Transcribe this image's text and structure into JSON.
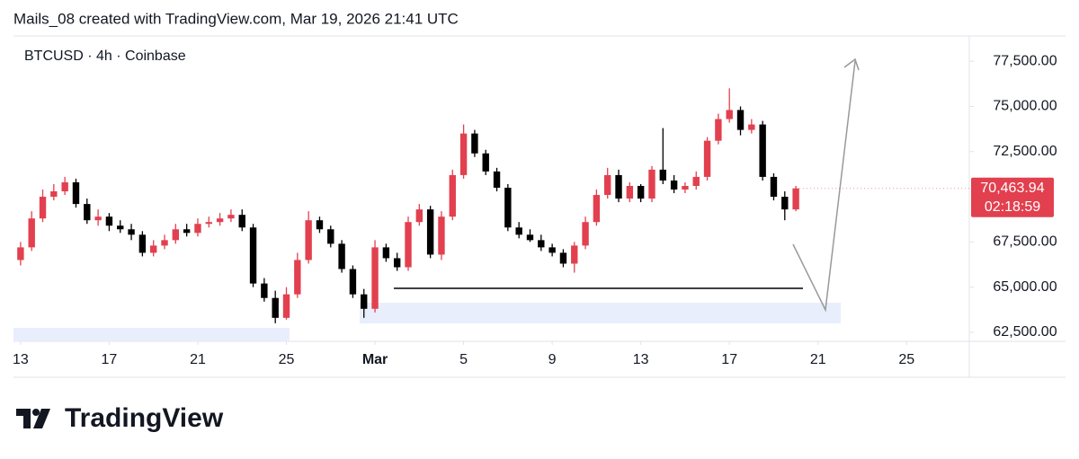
{
  "header": "Mails_08 created with TradingView.com, Mar 19, 2026 21:41 UTC",
  "logo": "TradingView",
  "chart_data": {
    "type": "candlestick",
    "title": "BTCUSD · 4h · Coinbase",
    "up_color": "#e2404f",
    "down_color": "#000000",
    "x": [
      0,
      0.5,
      1,
      1.5,
      2,
      2.5,
      3,
      3.5,
      4,
      4.5,
      5,
      5.5,
      6,
      6.5,
      7,
      7.5,
      8,
      8.5,
      9,
      9.5,
      10,
      10.5,
      11,
      11.5,
      12,
      12.5,
      13,
      13.5,
      14,
      14.5,
      15,
      15.5,
      16,
      16.5,
      17,
      17.5,
      18,
      18.5,
      19,
      19.5,
      20,
      20.5,
      21,
      21.5,
      22,
      22.5,
      23,
      23.5,
      24,
      24.5,
      25,
      25.5,
      26,
      26.5,
      27,
      27.5,
      28,
      28.5,
      29,
      29.5,
      30,
      30.5,
      31,
      31.5,
      32,
      32.5,
      33,
      33.5,
      34,
      34.5,
      35
    ],
    "open": [
      66500,
      67200,
      68800,
      70000,
      70300,
      70800,
      69600,
      68700,
      68900,
      68400,
      68200,
      67900,
      66900,
      67300,
      67600,
      68200,
      68000,
      68500,
      68600,
      68800,
      69000,
      68300,
      65200,
      64400,
      63300,
      64600,
      66500,
      68700,
      68200,
      67400,
      66000,
      64600,
      63800,
      67200,
      66600,
      66100,
      68600,
      69300,
      66800,
      68900,
      71200,
      73500,
      72400,
      71400,
      70500,
      68300,
      67900,
      67600,
      67200,
      66900,
      66300,
      67300,
      68600,
      70100,
      71200,
      69900,
      70600,
      69900,
      71500,
      70900,
      70400,
      70600,
      71100,
      73100,
      74300,
      74800,
      73700,
      74000,
      71100,
      70000,
      69300
    ],
    "high": [
      67500,
      69200,
      70400,
      70700,
      71100,
      71000,
      69900,
      69300,
      69100,
      68700,
      68500,
      68100,
      67600,
      67900,
      68500,
      68500,
      68800,
      68900,
      69100,
      69300,
      69300,
      68500,
      65500,
      64800,
      65000,
      66900,
      69200,
      68900,
      68400,
      67600,
      66200,
      64900,
      67600,
      67400,
      66900,
      68900,
      69600,
      69500,
      69200,
      71500,
      74000,
      73700,
      72600,
      71600,
      70700,
      68600,
      68200,
      67900,
      67400,
      67100,
      67500,
      68900,
      70400,
      71600,
      71500,
      70800,
      70700,
      71700,
      73800,
      71200,
      70800,
      71400,
      73300,
      74600,
      76000,
      75000,
      74300,
      74200,
      71300,
      70300,
      70600
    ],
    "low": [
      66200,
      67000,
      68600,
      69800,
      70100,
      69400,
      68500,
      68400,
      68100,
      68000,
      67600,
      66700,
      66700,
      67100,
      67400,
      67800,
      67800,
      68300,
      68400,
      68600,
      68100,
      65000,
      64200,
      63000,
      63200,
      64400,
      66300,
      68000,
      67200,
      65800,
      64400,
      63300,
      63600,
      66400,
      65900,
      65900,
      68400,
      66600,
      66500,
      68700,
      71000,
      72200,
      71200,
      70300,
      68100,
      67700,
      67500,
      67000,
      66700,
      66100,
      65800,
      67100,
      68400,
      69900,
      69700,
      69700,
      69700,
      69700,
      70700,
      70200,
      70200,
      70400,
      70900,
      72900,
      74100,
      73400,
      73500,
      70900,
      69800,
      68700,
      69200
    ],
    "close": [
      67200,
      68800,
      70000,
      70300,
      70800,
      69600,
      68700,
      68900,
      68400,
      68200,
      67900,
      66900,
      67300,
      67600,
      68200,
      68000,
      68500,
      68600,
      68800,
      69000,
      68300,
      65200,
      64400,
      63300,
      64600,
      66500,
      68700,
      68200,
      67400,
      66000,
      64600,
      63800,
      67200,
      66600,
      66100,
      68600,
      69300,
      66800,
      68900,
      71200,
      73500,
      72400,
      71400,
      70500,
      68300,
      67900,
      67600,
      67200,
      66900,
      66300,
      67300,
      68600,
      70100,
      71200,
      69900,
      70600,
      69900,
      71500,
      70900,
      70400,
      70600,
      71100,
      73100,
      74300,
      74800,
      73700,
      74000,
      71100,
      70000,
      69300,
      70463.94
    ],
    "xlim": [
      -0.32,
      42.83
    ],
    "ylim": [
      62000,
      78900
    ],
    "xticks": [
      {
        "value": 0,
        "label": "13"
      },
      {
        "value": 4,
        "label": "17"
      },
      {
        "value": 8,
        "label": "21"
      },
      {
        "value": 12,
        "label": "25"
      },
      {
        "value": 16,
        "label": "Mar"
      },
      {
        "value": 20,
        "label": "5"
      },
      {
        "value": 24,
        "label": "9"
      },
      {
        "value": 28,
        "label": "13"
      },
      {
        "value": 32,
        "label": "17"
      },
      {
        "value": 36,
        "label": "21"
      },
      {
        "value": 40,
        "label": "25"
      }
    ],
    "yticks": [
      {
        "value": 62500,
        "label": "62,500.00"
      },
      {
        "value": 65000,
        "label": "65,000.00"
      },
      {
        "value": 67500,
        "label": "67,500.00"
      },
      {
        "value": 72500,
        "label": "72,500.00"
      },
      {
        "value": 75000,
        "label": "75,000.00"
      },
      {
        "value": 77500,
        "label": "77,500.00"
      }
    ],
    "last_price": {
      "value": 70463.94,
      "label": "70,463.94"
    },
    "countdown": "02:18:59"
  }
}
